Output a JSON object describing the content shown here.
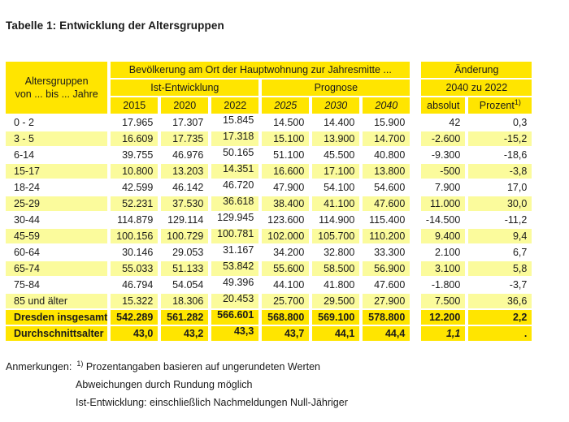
{
  "title": "Tabelle 1: Entwicklung der Altersgruppen",
  "colors": {
    "header_yellow": "#FFE500",
    "zebra_yellow": "#FBFB9C",
    "text": "#1a1a1a"
  },
  "table": {
    "col_header_line1": "Altersgruppen",
    "col_header_line2": "von ... bis ... Jahre",
    "group_header": "Bevölkerung am Ort der Hauptwohnung zur Jahresmitte ...",
    "subgroup_ist": "Ist-Entwicklung",
    "subgroup_prognose": "Prognose",
    "change_header_line1": "Änderung",
    "change_header_line2": "2040 zu 2022",
    "year_cols": [
      "2015",
      "2020",
      "2022"
    ],
    "prognose_cols": [
      "2025",
      "2030",
      "2040"
    ],
    "change_col_absolut": "absolut",
    "change_col_prozent": "Prozent",
    "prozent_superscript": "1)",
    "rows": [
      {
        "label": "0 - 2",
        "values": [
          "17.965",
          "17.307",
          "15.845",
          "14.500",
          "14.400",
          "15.900",
          "42",
          "0,3"
        ],
        "shade": false
      },
      {
        "label": "3 - 5",
        "values": [
          "16.609",
          "17.735",
          "17.318",
          "15.100",
          "13.900",
          "14.700",
          "-2.600",
          "-15,2"
        ],
        "shade": true
      },
      {
        "label": "6-14",
        "values": [
          "39.755",
          "46.976",
          "50.165",
          "51.100",
          "45.500",
          "40.800",
          "-9.300",
          "-18,6"
        ],
        "shade": false
      },
      {
        "label": "15-17",
        "values": [
          "10.800",
          "13.203",
          "14.351",
          "16.600",
          "17.100",
          "13.800",
          "-500",
          "-3,8"
        ],
        "shade": true
      },
      {
        "label": "18-24",
        "values": [
          "42.599",
          "46.142",
          "46.720",
          "47.900",
          "54.100",
          "54.600",
          "7.900",
          "17,0"
        ],
        "shade": false
      },
      {
        "label": "25-29",
        "values": [
          "52.231",
          "37.530",
          "36.618",
          "38.400",
          "41.100",
          "47.600",
          "11.000",
          "30,0"
        ],
        "shade": true
      },
      {
        "label": "30-44",
        "values": [
          "114.879",
          "129.114",
          "129.945",
          "123.600",
          "114.900",
          "115.400",
          "-14.500",
          "-11,2"
        ],
        "shade": false
      },
      {
        "label": "45-59",
        "values": [
          "100.156",
          "100.729",
          "100.781",
          "102.000",
          "105.700",
          "110.200",
          "9.400",
          "9,4"
        ],
        "shade": true
      },
      {
        "label": "60-64",
        "values": [
          "30.146",
          "29.053",
          "31.167",
          "34.200",
          "32.800",
          "33.300",
          "2.100",
          "6,7"
        ],
        "shade": false
      },
      {
        "label": "65-74",
        "values": [
          "55.033",
          "51.133",
          "53.842",
          "55.600",
          "58.500",
          "56.900",
          "3.100",
          "5,8"
        ],
        "shade": true
      },
      {
        "label": "75-84",
        "values": [
          "46.794",
          "54.054",
          "49.396",
          "44.100",
          "41.800",
          "47.600",
          "-1.800",
          "-3,7"
        ],
        "shade": false
      },
      {
        "label": "85 und älter",
        "values": [
          "15.322",
          "18.306",
          "20.453",
          "25.700",
          "29.500",
          "27.900",
          "7.500",
          "36,6"
        ],
        "shade": true
      }
    ],
    "summary_rows": [
      {
        "label": "Dresden insgesamt",
        "values": [
          "542.289",
          "561.282",
          "566.601",
          "568.800",
          "569.100",
          "578.800",
          "12.200",
          "2,2"
        ],
        "italic_cols": []
      },
      {
        "label": "Durchschnittsalter",
        "values": [
          "43,0",
          "43,2",
          "43,3",
          "43,7",
          "44,1",
          "44,4",
          "1,1",
          "."
        ],
        "italic_cols": [
          6
        ]
      }
    ]
  },
  "footnotes": {
    "prefix": "Anmerkungen:",
    "superscript": "1)",
    "line1": "Prozentangaben basieren auf ungerundeten Werten",
    "line2": "Abweichungen durch Rundung möglich",
    "line3": "Ist-Entwicklung: einschließlich Nachmeldungen Null-Jähriger"
  }
}
